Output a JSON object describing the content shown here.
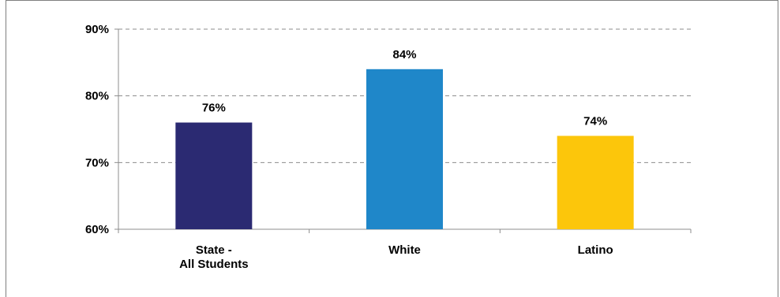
{
  "chart_data": {
    "type": "bar",
    "categories": [
      [
        "State -",
        "All Students"
      ],
      [
        "White"
      ],
      [
        "Latino"
      ]
    ],
    "values": [
      76,
      84,
      74
    ],
    "value_labels": [
      "76%",
      "84%",
      "74%"
    ],
    "ylim": [
      60,
      90
    ],
    "yticks": [
      60,
      70,
      80,
      90
    ],
    "ytick_labels": [
      "60%",
      "70%",
      "80%",
      "90%"
    ],
    "grid": true,
    "colors": [
      "#2b2a72",
      "#1f87c9",
      "#fcc60b"
    ]
  }
}
